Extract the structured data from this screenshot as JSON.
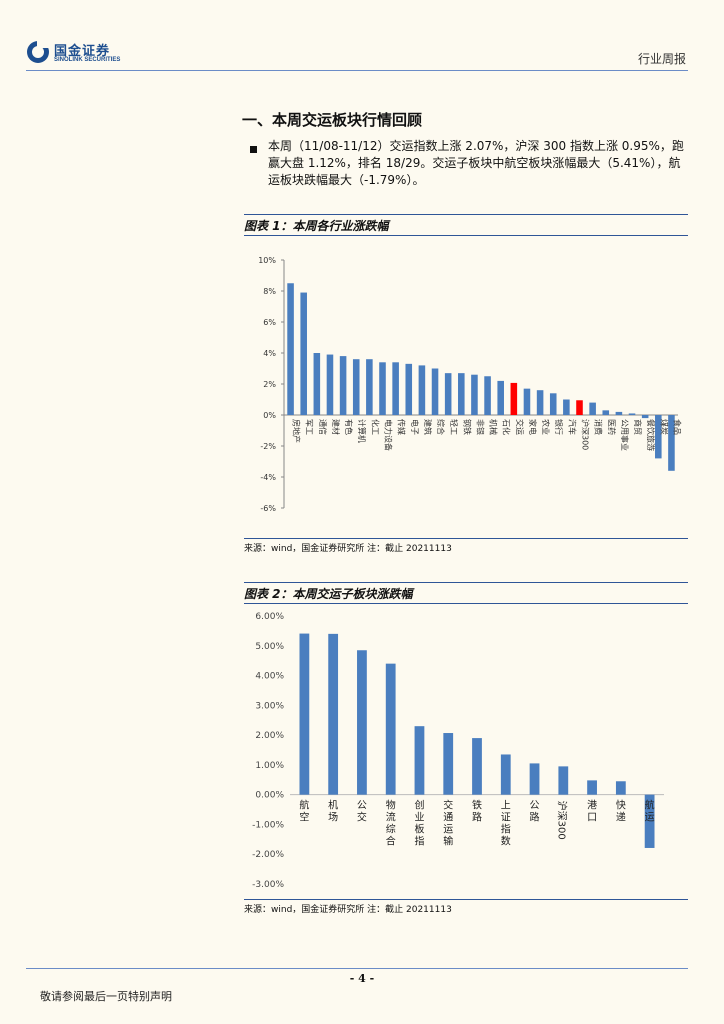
{
  "header": {
    "logo_cn": "国金证券",
    "logo_en": "SINOLINK SECURITIES",
    "report_type": "行业周报"
  },
  "section": {
    "title": "一、本周交运板块行情回顾",
    "bullet": "本周（11/08-11/12）交运指数上涨 2.07%，沪深 300 指数上涨 0.95%，跑赢大盘 1.12%，排名 18/29。交运子板块中航空板块涨幅最大（5.41%），航运板块跌幅最大（-1.79%）。"
  },
  "figure1": {
    "title": "图表 1：本周各行业涨跌幅",
    "source": "来源：wind，国金证券研究所 注：截止 20211113"
  },
  "figure2": {
    "title": "图表 2：本周交运子板块涨跌幅",
    "source": "来源：wind，国金证券研究所 注：截止 20211113"
  },
  "footer": {
    "page_number": "- 4 -",
    "disclaimer": "敬请参阅最后一页特别声明"
  },
  "colors": {
    "bar": "#4a7ebf",
    "highlight": "#ff0000",
    "rule": "#2f5597"
  },
  "chart_data": [
    {
      "type": "bar",
      "title": "本周各行业涨跌幅",
      "categories": [
        "房地产",
        "军工",
        "通信",
        "建材",
        "有色",
        "计算机",
        "化工",
        "电力设备",
        "传媒",
        "电子",
        "建筑",
        "综合",
        "轻工",
        "钢铁",
        "非银",
        "机械",
        "石化",
        "交运",
        "家电",
        "农业",
        "银行",
        "汽车",
        "沪深300",
        "消费",
        "医药",
        "公用事业",
        "商贸",
        "餐饮旅游",
        "煤炭",
        "食品"
      ],
      "values": [
        8.5,
        7.9,
        4.0,
        3.9,
        3.8,
        3.6,
        3.6,
        3.4,
        3.4,
        3.3,
        3.2,
        3.0,
        2.7,
        2.7,
        2.6,
        2.5,
        2.2,
        2.07,
        1.7,
        1.6,
        1.4,
        1.0,
        0.95,
        0.8,
        0.3,
        0.2,
        0.1,
        -0.2,
        -2.8,
        -3.6
      ],
      "highlight": [
        "交运",
        "沪深300"
      ],
      "yticks": [
        "10%",
        "8%",
        "6%",
        "4%",
        "2%",
        "0%",
        "-2%",
        "-4%",
        "-6%"
      ],
      "ylim": [
        -6,
        10
      ]
    },
    {
      "type": "bar",
      "title": "本周交运子板块涨跌幅",
      "categories": [
        "航空",
        "机场",
        "公交",
        "物流综合",
        "创业板指",
        "交通运输",
        "铁路",
        "上证指数",
        "公路",
        "沪深300",
        "港口",
        "快递",
        "航运"
      ],
      "values": [
        5.41,
        5.4,
        4.85,
        4.4,
        2.3,
        2.07,
        1.9,
        1.35,
        1.05,
        0.95,
        0.48,
        0.45,
        -1.79
      ],
      "yticks": [
        "6.00%",
        "5.00%",
        "4.00%",
        "3.00%",
        "2.00%",
        "1.00%",
        "0.00%",
        "-1.00%",
        "-2.00%",
        "-3.00%"
      ],
      "ylim": [
        -3,
        6
      ]
    }
  ]
}
